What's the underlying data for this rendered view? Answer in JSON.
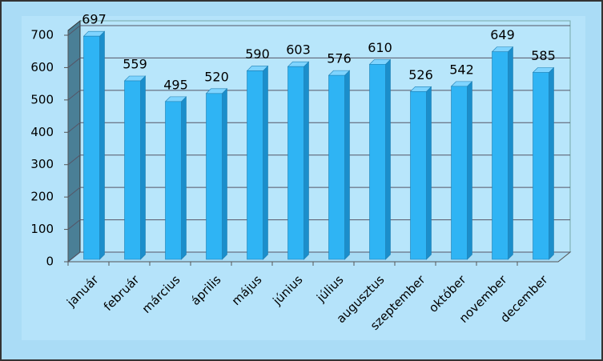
{
  "chart_data": {
    "type": "bar3d",
    "categories": [
      "január",
      "február",
      "március",
      "április",
      "május",
      "június",
      "július",
      "augusztus",
      "szeptember",
      "október",
      "november",
      "december"
    ],
    "values": [
      697,
      559,
      495,
      520,
      590,
      603,
      576,
      610,
      526,
      542,
      649,
      585
    ],
    "color": "#2fb4f4",
    "ylim": [
      0,
      700
    ],
    "yticks": [
      0,
      100,
      200,
      300,
      400,
      500,
      600,
      700
    ],
    "grid": true
  }
}
